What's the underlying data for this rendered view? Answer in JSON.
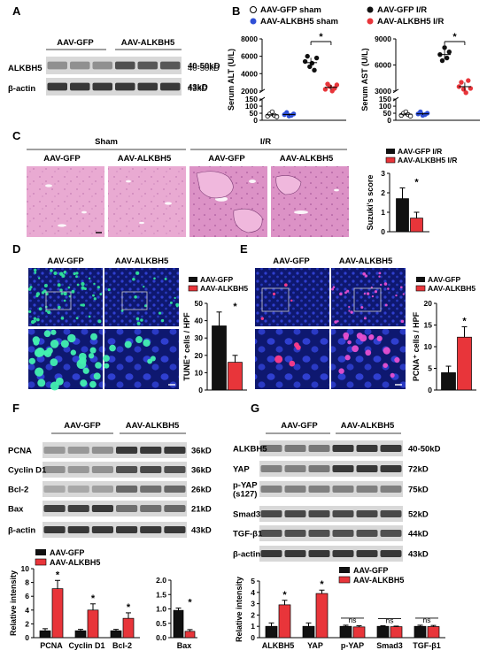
{
  "panels": {
    "A": "A",
    "B": "B",
    "C": "C",
    "D": "D",
    "E": "E",
    "F": "F",
    "G": "G"
  },
  "colors": {
    "gfp": "#111111",
    "alkbh5": "#e8353a",
    "sham_open": "#ffffff",
    "sham_blue": "#2f4fd6",
    "he_bg": "#e8a9cf",
    "fluor_bg": "#101860"
  },
  "panel_a": {
    "groups": [
      "AAV-GFP",
      "AAV-ALKBH5"
    ],
    "rows": [
      {
        "label": "ALKBH5",
        "kd": "40-50kD"
      },
      {
        "label": "β-actin",
        "kd": "43kD"
      }
    ]
  },
  "panel_b": {
    "legend": [
      "AAV-GFP sham",
      "AAV-ALKBH5 sham",
      "AAV-GFP I/R",
      "AAV-ALKBH5 I/R"
    ],
    "star": "*"
  },
  "panel_c": {
    "headers": {
      "sham": "Sham",
      "ir": "I/R"
    },
    "cols": [
      "AAV-GFP",
      "AAV-ALKBH5",
      "AAV-GFP",
      "AAV-ALKBH5"
    ],
    "legend": [
      "AAV-GFP I/R",
      "AAV-ALKBH5 I/R"
    ],
    "star": "*"
  },
  "panel_d": {
    "cols": [
      "AAV-GFP",
      "AAV-ALKBH5"
    ],
    "legend": [
      "AAV-GFP",
      "AAV-ALKBH5"
    ],
    "star": "*"
  },
  "panel_e": {
    "cols": [
      "AAV-GFP",
      "AAV-ALKBH5"
    ],
    "legend": [
      "AAV-GFP",
      "AAV-ALKBH5"
    ],
    "star": "*"
  },
  "panel_f": {
    "groups": [
      "AAV-GFP",
      "AAV-ALKBH5"
    ],
    "rows": [
      {
        "label": "PCNA",
        "kd": "36kD"
      },
      {
        "label": "Cyclin D1",
        "kd": "36kD"
      },
      {
        "label": "Bcl-2",
        "kd": "26kD"
      },
      {
        "label": "Bax",
        "kd": "21kD"
      },
      {
        "label": "β-actin",
        "kd": "43kD"
      }
    ],
    "legend": [
      "AAV-GFP",
      "AAV-ALKBH5"
    ],
    "star": "*"
  },
  "panel_g": {
    "groups": [
      "AAV-GFP",
      "AAV-ALKBH5"
    ],
    "rows": [
      {
        "label": "ALKBH5",
        "kd": "40-50kD"
      },
      {
        "label": "YAP",
        "kd": "72kD"
      },
      {
        "label": "p-YAP\n(s127)",
        "kd": "75kD"
      },
      {
        "label": "Smad3",
        "kd": "52kD"
      },
      {
        "label": "TGF-β1",
        "kd": "44kD"
      },
      {
        "label": "β-actin",
        "kd": "43kD"
      }
    ],
    "legend": [
      "AAV-GFP",
      "AAV-ALKBH5"
    ],
    "star": "*",
    "ns": "ns"
  },
  "chart_data": [
    {
      "id": "B-ALT",
      "type": "scatter",
      "ylabel": "Serum ALT (U/L)",
      "yticks": [
        "0",
        "50",
        "100",
        "150",
        "2000",
        "4000",
        "6000",
        "8000"
      ],
      "series": [
        {
          "name": "AAV-GFP sham",
          "values": [
            30,
            45,
            60,
            35,
            25
          ]
        },
        {
          "name": "AAV-ALKBH5 sham",
          "values": [
            40,
            55,
            30,
            35,
            45
          ]
        },
        {
          "name": "AAV-GFP I/R",
          "values": [
            5400,
            6000,
            4800,
            5200,
            4400,
            5800
          ]
        },
        {
          "name": "AAV-ALKBH5 I/R",
          "values": [
            2200,
            2800,
            2500,
            2000,
            2300,
            2700
          ]
        }
      ]
    },
    {
      "id": "B-AST",
      "type": "scatter",
      "ylabel": "Serum AST (U/L)",
      "yticks": [
        "0",
        "50",
        "100",
        "150",
        "3000",
        "6000",
        "9000"
      ],
      "series": [
        {
          "name": "AAV-GFP sham",
          "values": [
            35,
            50,
            60,
            40,
            30
          ]
        },
        {
          "name": "AAV-ALKBH5 sham",
          "values": [
            45,
            60,
            35,
            40,
            50
          ]
        },
        {
          "name": "AAV-GFP I/R",
          "values": [
            7200,
            6500,
            8000,
            6800,
            7500
          ]
        },
        {
          "name": "AAV-ALKBH5 I/R",
          "values": [
            3500,
            4000,
            3200,
            2800,
            4200,
            3300
          ]
        }
      ]
    },
    {
      "id": "C",
      "type": "bar",
      "ylabel": "Suzuki's score",
      "yticks": [
        "0",
        "1",
        "2",
        "3"
      ],
      "ylim": [
        0,
        3
      ],
      "series": [
        {
          "name": "AAV-GFP I/R",
          "values": [
            1.7
          ],
          "err": [
            0.55
          ]
        },
        {
          "name": "AAV-ALKBH5 I/R",
          "values": [
            0.7
          ],
          "err": [
            0.3
          ]
        }
      ]
    },
    {
      "id": "D",
      "type": "bar",
      "ylabel": "TUNE⁺ cells / HPF",
      "yticks": [
        "0",
        "10",
        "20",
        "30",
        "40",
        "50"
      ],
      "ylim": [
        0,
        50
      ],
      "series": [
        {
          "name": "AAV-GFP",
          "values": [
            37
          ],
          "err": [
            8
          ]
        },
        {
          "name": "AAV-ALKBH5",
          "values": [
            16
          ],
          "err": [
            4
          ]
        }
      ]
    },
    {
      "id": "E",
      "type": "bar",
      "ylabel": "PCNA⁺ cells / HPF",
      "yticks": [
        "0",
        "5",
        "10",
        "15",
        "20"
      ],
      "ylim": [
        0,
        20
      ],
      "series": [
        {
          "name": "AAV-GFP",
          "values": [
            4
          ],
          "err": [
            1.5
          ]
        },
        {
          "name": "AAV-ALKBH5",
          "values": [
            12.2
          ],
          "err": [
            2.4
          ]
        }
      ]
    },
    {
      "id": "F-1",
      "type": "bar",
      "ylabel": "Relative intensity",
      "yticks": [
        "0",
        "2",
        "4",
        "6",
        "8",
        "10"
      ],
      "ylim": [
        0,
        10
      ],
      "categories": [
        "PCNA",
        "Cyclin D1",
        "Bcl-2"
      ],
      "series": [
        {
          "name": "AAV-GFP",
          "values": [
            1,
            1,
            1
          ],
          "err": [
            0.3,
            0.2,
            0.2
          ]
        },
        {
          "name": "AAV-ALKBH5",
          "values": [
            7.1,
            4,
            2.8
          ],
          "err": [
            1.2,
            0.9,
            0.8
          ]
        }
      ]
    },
    {
      "id": "F-2",
      "type": "bar",
      "yticks": [
        "0.0",
        "0.5",
        "1.0",
        "1.5",
        "2.0"
      ],
      "ylim": [
        0,
        2
      ],
      "categories": [
        "Bax"
      ],
      "series": [
        {
          "name": "AAV-GFP",
          "values": [
            0.95
          ],
          "err": [
            0.08
          ]
        },
        {
          "name": "AAV-ALKBH5",
          "values": [
            0.22
          ],
          "err": [
            0.06
          ]
        }
      ]
    },
    {
      "id": "G",
      "type": "bar",
      "ylabel": "Relative intensity",
      "yticks": [
        "0",
        "1",
        "2",
        "3",
        "4",
        "5"
      ],
      "ylim": [
        0,
        5
      ],
      "categories": [
        "ALKBH5",
        "YAP",
        "p-YAP",
        "Smad3",
        "TGF-β1"
      ],
      "series": [
        {
          "name": "AAV-GFP",
          "values": [
            1,
            1,
            1,
            1,
            1
          ],
          "err": [
            0.3,
            0.3,
            0.1,
            0.05,
            0.1
          ]
        },
        {
          "name": "AAV-ALKBH5",
          "values": [
            2.9,
            3.9,
            0.95,
            0.97,
            0.98
          ],
          "err": [
            0.4,
            0.3,
            0.1,
            0.05,
            0.1
          ]
        }
      ]
    }
  ]
}
